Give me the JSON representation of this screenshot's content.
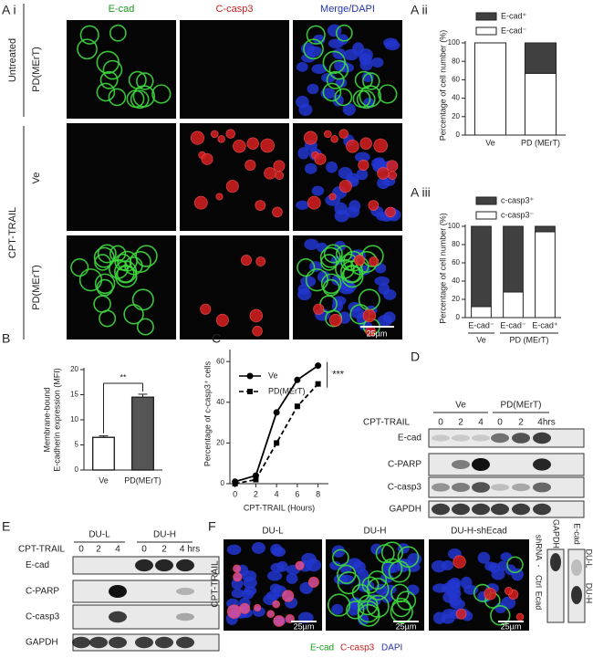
{
  "figure": {
    "a_i": {
      "panel_label": "A i",
      "columns": [
        "E-cad",
        "C-casp3",
        "Merge/DAPI"
      ],
      "groups": [
        "Untreated",
        "CPT-TRAIL"
      ],
      "rows": [
        "PD(MErT)",
        "Ve",
        "PD(MErT)"
      ],
      "scale_bar": "25µm"
    },
    "blot_d": {
      "panel_label": "D",
      "treatment": "CPT-TRAIL",
      "groups": [
        "Ve",
        "PD(MErT)"
      ],
      "lanes": [
        "0",
        "2",
        "4",
        "0",
        "2",
        "4hrs"
      ],
      "rows": [
        "E-cad",
        "C-PARP",
        "C-casp3",
        "GAPDH"
      ]
    },
    "blot_e": {
      "panel_label": "E",
      "treatment": "CPT-TRAIL",
      "groups": [
        "DU-L",
        "DU-H"
      ],
      "lanes": [
        "0",
        "2",
        "4",
        "0",
        "2",
        "4 hrs"
      ],
      "rows": [
        "E-cad",
        "C-PARP",
        "C-casp3",
        "GAPDH"
      ]
    },
    "f": {
      "panel_label": "F",
      "treatment": "CPT-TRAIL",
      "columns": [
        "DU-L",
        "DU-H",
        "DU-H-shEcad"
      ],
      "scale_bars": [
        "25µm",
        "25µm",
        "25µm"
      ],
      "legend": [
        "E-cad",
        "C-casp3",
        "DAPI"
      ],
      "blot": {
        "row_labels": [
          "GAPDH",
          "E-cad"
        ],
        "shrna": [
          "shRNA",
          "-",
          "Ctrl",
          "Ecad"
        ],
        "cells": [
          "DU-L",
          "DU-H"
        ]
      }
    }
  },
  "chart_data": [
    {
      "type": "stacked-bar",
      "panel_label": "A ii",
      "ylabel": "Percentage of cell number (%)",
      "categories": [
        "Ve",
        "PD (MErT)"
      ],
      "series": [
        {
          "name": "E-cad⁻",
          "color": "#ffffff",
          "values": [
            100,
            67
          ]
        },
        {
          "name": "E-cad⁺",
          "color": "#404040",
          "values": [
            0,
            33
          ]
        }
      ],
      "ylim": [
        0,
        100
      ],
      "yticks": [
        0,
        20,
        40,
        60,
        80,
        100
      ]
    },
    {
      "type": "stacked-bar",
      "panel_label": "A iii",
      "ylabel": "Percentage of cell number (%)",
      "categories": [
        "E-cad⁻",
        "E-cad⁻",
        "E-cad⁺"
      ],
      "groups": [
        {
          "label": "Ve",
          "size": 1
        },
        {
          "label": "PD (MErT)",
          "size": 2
        }
      ],
      "series": [
        {
          "name": "c-casp3⁻",
          "color": "#ffffff",
          "values": [
            12,
            28,
            94
          ]
        },
        {
          "name": "c-casp3⁺",
          "color": "#404040",
          "values": [
            88,
            72,
            6
          ]
        }
      ],
      "ylim": [
        0,
        100
      ],
      "yticks": [
        0,
        20,
        40,
        60,
        80,
        100
      ]
    },
    {
      "type": "bar",
      "panel_label": "B",
      "ylabel": [
        "Membrane-bound",
        "E-cadherin expression (MFI)"
      ],
      "categories": [
        "Ve",
        "PD(MErT)"
      ],
      "values": [
        6.5,
        14.5
      ],
      "errors": [
        0.3,
        0.6
      ],
      "colors": [
        "#ffffff",
        "#555555"
      ],
      "annotation": "**",
      "ylim": [
        0,
        20
      ],
      "yticks": [
        0,
        5,
        10,
        15,
        20
      ]
    },
    {
      "type": "line",
      "panel_label": "C",
      "ylabel": "Percentage of c-casp3⁺ cells",
      "xlabel": "CPT-TRAIL (Hours)",
      "x": [
        0,
        2,
        4,
        6,
        8
      ],
      "series": [
        {
          "name": "Ve",
          "color": "#000000",
          "dash": false,
          "marker": "circle",
          "values": [
            1,
            4,
            35,
            51,
            58
          ]
        },
        {
          "name": "PD(MErT)",
          "color": "#000000",
          "dash": true,
          "marker": "square",
          "values": [
            0,
            2,
            20,
            38,
            49
          ]
        }
      ],
      "annotation": "***",
      "xlim": [
        -0.5,
        9
      ],
      "xticks": [
        0,
        2,
        4,
        6,
        8
      ],
      "ylim": [
        0,
        65
      ],
      "yticks": [
        0,
        20,
        40,
        60
      ]
    }
  ]
}
